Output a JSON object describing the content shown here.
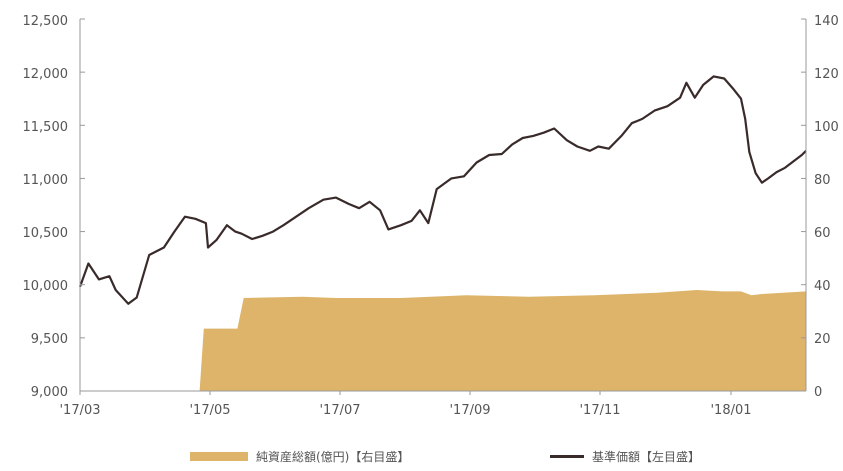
{
  "chart_data": {
    "type": "area+line",
    "colors": {
      "area": "#ddb46a",
      "line": "#3a2b2b",
      "axis": "#9a9a9a"
    },
    "x_ticks": [
      "'17/03",
      "'17/05",
      "'17/07",
      "'17/09",
      "'17/11",
      "'18/01"
    ],
    "y_left": {
      "ticks": [
        "9,000",
        "9,500",
        "10,000",
        "10,500",
        "11,000",
        "11,500",
        "12,000",
        "12,500"
      ],
      "range": [
        9000,
        12500
      ]
    },
    "y_right": {
      "ticks": [
        "0",
        "20",
        "40",
        "60",
        "80",
        "100",
        "120",
        "140"
      ],
      "range": [
        0,
        140
      ]
    },
    "legend": [
      {
        "label": "純資産総額(億円)【右目盛】",
        "kind": "area"
      },
      {
        "label": "基準価額【左目盛】",
        "kind": "line"
      }
    ],
    "x_range": [
      "2017-03-01",
      "2018-02-10"
    ],
    "series": [
      {
        "name": "純資産総額(億円)【右目盛】",
        "axis": "right",
        "points": [
          [
            "2017-04-23",
            0
          ],
          [
            "2017-04-27",
            0
          ],
          [
            "2017-04-29",
            23.5
          ],
          [
            "2017-05-15",
            23.5
          ],
          [
            "2017-05-18",
            35
          ],
          [
            "2017-06-15",
            35.5
          ],
          [
            "2017-07-01",
            35
          ],
          [
            "2017-08-01",
            35
          ],
          [
            "2017-09-01",
            36
          ],
          [
            "2017-10-01",
            35.5
          ],
          [
            "2017-11-01",
            36
          ],
          [
            "2017-12-01",
            37
          ],
          [
            "2017-12-20",
            38
          ],
          [
            "2018-01-01",
            37.5
          ],
          [
            "2018-01-10",
            37.5
          ],
          [
            "2018-01-15",
            36
          ],
          [
            "2018-01-20",
            36.5
          ],
          [
            "2018-02-10",
            37.5
          ]
        ]
      },
      {
        "name": "基準価額【左目盛】",
        "axis": "left",
        "points": [
          [
            "2017-03-01",
            9980
          ],
          [
            "2017-03-05",
            10200
          ],
          [
            "2017-03-10",
            10050
          ],
          [
            "2017-03-15",
            10080
          ],
          [
            "2017-03-18",
            9950
          ],
          [
            "2017-03-24",
            9820
          ],
          [
            "2017-03-28",
            9880
          ],
          [
            "2017-04-03",
            10280
          ],
          [
            "2017-04-10",
            10350
          ],
          [
            "2017-04-15",
            10500
          ],
          [
            "2017-04-20",
            10640
          ],
          [
            "2017-04-25",
            10620
          ],
          [
            "2017-04-30",
            10580
          ],
          [
            "2017-05-01",
            10350
          ],
          [
            "2017-05-05",
            10420
          ],
          [
            "2017-05-10",
            10560
          ],
          [
            "2017-05-14",
            10500
          ],
          [
            "2017-05-17",
            10480
          ],
          [
            "2017-05-22",
            10430
          ],
          [
            "2017-05-27",
            10460
          ],
          [
            "2017-06-01",
            10500
          ],
          [
            "2017-06-06",
            10560
          ],
          [
            "2017-06-12",
            10640
          ],
          [
            "2017-06-18",
            10720
          ],
          [
            "2017-06-25",
            10800
          ],
          [
            "2017-07-01",
            10820
          ],
          [
            "2017-07-07",
            10760
          ],
          [
            "2017-07-12",
            10720
          ],
          [
            "2017-07-17",
            10780
          ],
          [
            "2017-07-22",
            10700
          ],
          [
            "2017-07-26",
            10520
          ],
          [
            "2017-08-01",
            10560
          ],
          [
            "2017-08-06",
            10600
          ],
          [
            "2017-08-10",
            10700
          ],
          [
            "2017-08-14",
            10580
          ],
          [
            "2017-08-18",
            10900
          ],
          [
            "2017-08-25",
            11000
          ],
          [
            "2017-08-31",
            11020
          ],
          [
            "2017-09-06",
            11150
          ],
          [
            "2017-09-12",
            11220
          ],
          [
            "2017-09-18",
            11230
          ],
          [
            "2017-09-23",
            11320
          ],
          [
            "2017-09-28",
            11380
          ],
          [
            "2017-10-03",
            11400
          ],
          [
            "2017-10-08",
            11430
          ],
          [
            "2017-10-13",
            11470
          ],
          [
            "2017-10-19",
            11360
          ],
          [
            "2017-10-24",
            11300
          ],
          [
            "2017-10-30",
            11260
          ],
          [
            "2017-11-03",
            11300
          ],
          [
            "2017-11-08",
            11280
          ],
          [
            "2017-11-14",
            11400
          ],
          [
            "2017-11-19",
            11520
          ],
          [
            "2017-11-24",
            11560
          ],
          [
            "2017-11-30",
            11640
          ],
          [
            "2017-12-06",
            11680
          ],
          [
            "2017-12-12",
            11760
          ],
          [
            "2017-12-15",
            11900
          ],
          [
            "2017-12-19",
            11760
          ],
          [
            "2017-12-23",
            11880
          ],
          [
            "2017-12-28",
            11960
          ],
          [
            "2018-01-02",
            11940
          ],
          [
            "2018-01-06",
            11850
          ],
          [
            "2018-01-10",
            11750
          ],
          [
            "2018-01-12",
            11560
          ],
          [
            "2018-01-14",
            11250
          ],
          [
            "2018-01-17",
            11050
          ],
          [
            "2018-01-20",
            10960
          ],
          [
            "2018-01-23",
            11000
          ],
          [
            "2018-01-27",
            11060
          ],
          [
            "2018-01-31",
            11100
          ],
          [
            "2018-02-04",
            11160
          ],
          [
            "2018-02-08",
            11220
          ],
          [
            "2018-02-10",
            11260
          ]
        ]
      }
    ]
  }
}
